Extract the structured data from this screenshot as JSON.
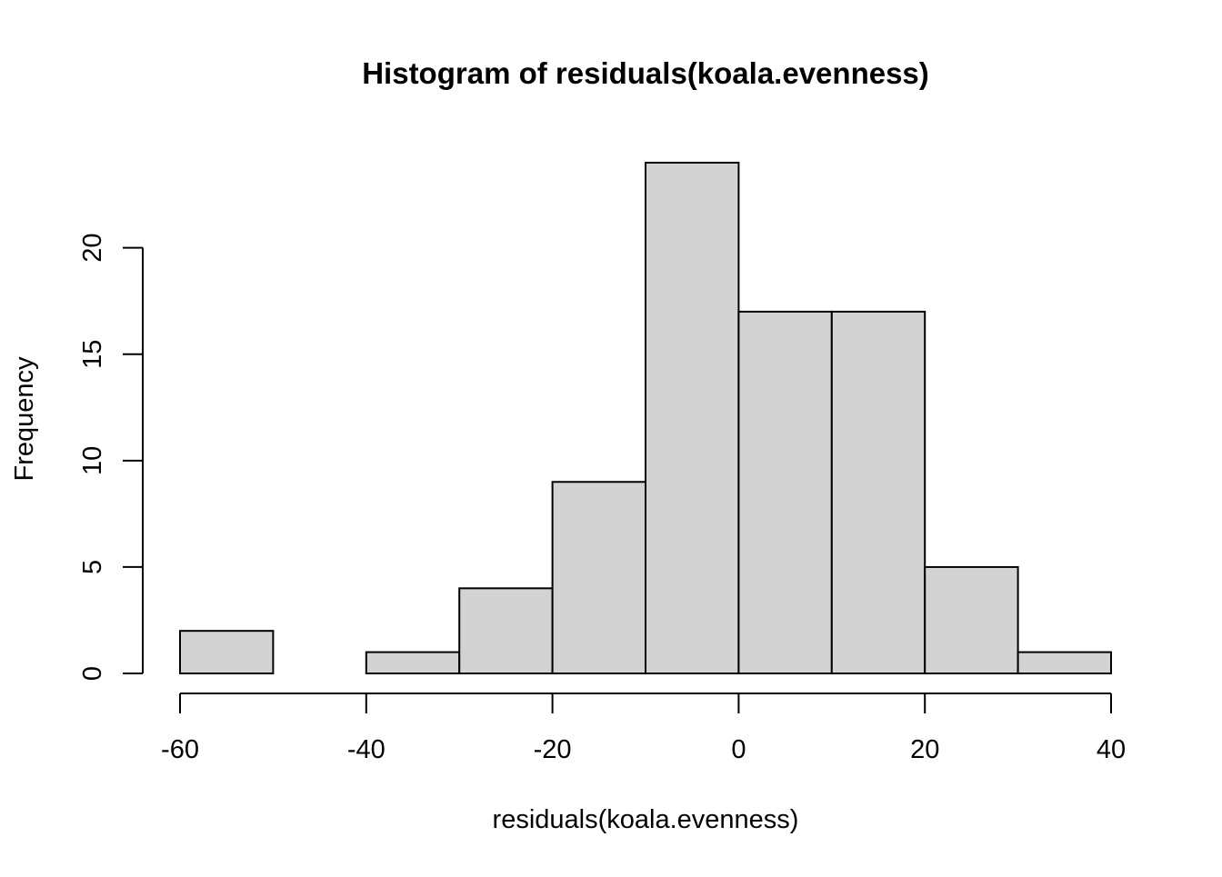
{
  "chart_data": {
    "type": "bar",
    "title": "Histogram of residuals(koala.evenness)",
    "xlabel": "residuals(koala.evenness)",
    "ylabel": "Frequency",
    "bin_edges": [
      -60,
      -50,
      -40,
      -30,
      -20,
      -10,
      0,
      10,
      20,
      30,
      40
    ],
    "values": [
      2,
      0,
      1,
      4,
      9,
      24,
      17,
      17,
      5,
      1
    ],
    "xlim": [
      -60,
      40
    ],
    "ylim": [
      0,
      24
    ],
    "x_ticks": [
      "-60",
      "-40",
      "-20",
      "0",
      "20",
      "40"
    ],
    "y_ticks": [
      "0",
      "5",
      "10",
      "15",
      "20"
    ],
    "bar_fill": "#d3d3d3",
    "bar_stroke": "#000000",
    "grid": false,
    "legend": "none"
  }
}
